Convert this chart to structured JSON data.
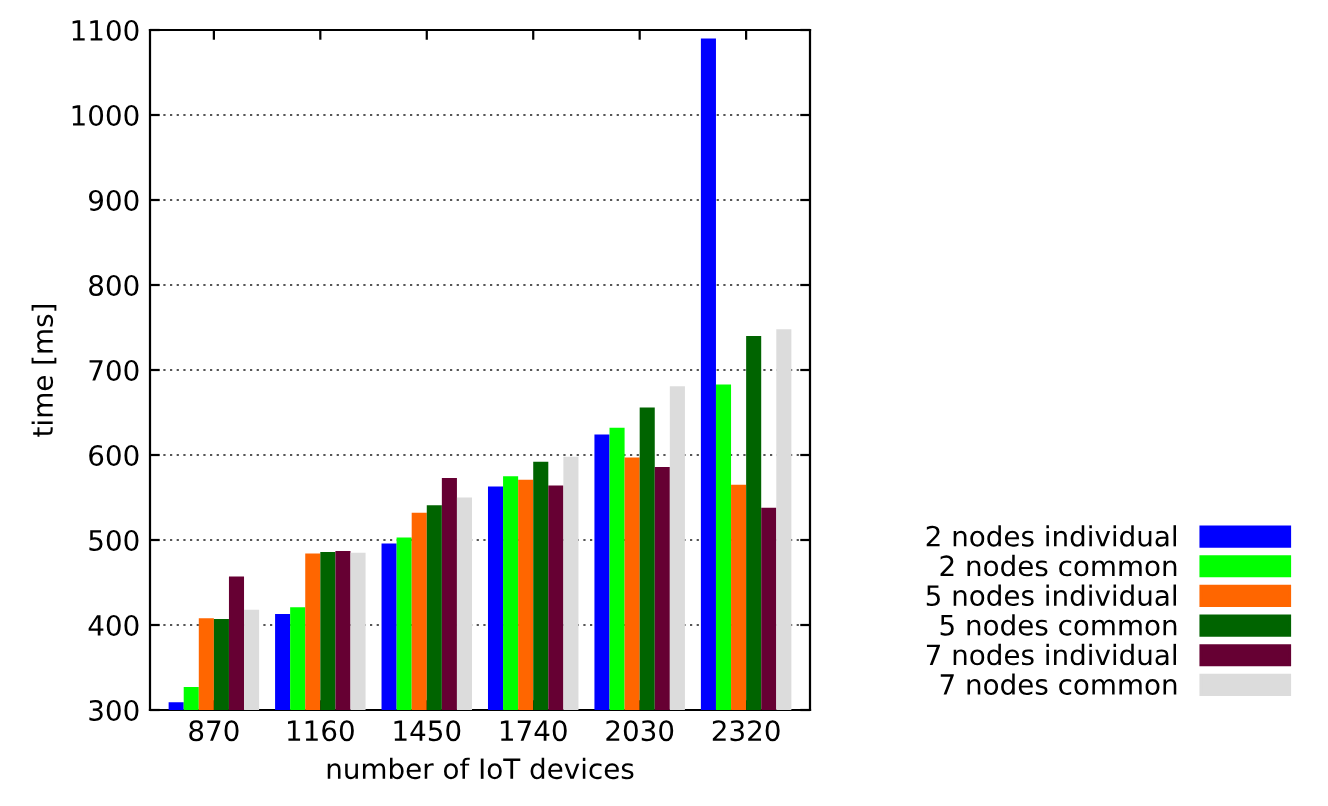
{
  "chart_data": {
    "type": "bar",
    "xlabel": "number of IoT devices",
    "ylabel": "time [ms]",
    "categories": [
      "870",
      "1160",
      "1450",
      "1740",
      "2030",
      "2320"
    ],
    "series": [
      {
        "name": "2 nodes individual",
        "color": "#0000ff",
        "values": [
          309,
          413,
          496,
          563,
          624,
          1090
        ]
      },
      {
        "name": "2 nodes common",
        "color": "#00ff00",
        "values": [
          327,
          421,
          503,
          575,
          632,
          683
        ]
      },
      {
        "name": "5 nodes individual",
        "color": "#ff6600",
        "values": [
          408,
          484,
          532,
          571,
          597,
          565
        ]
      },
      {
        "name": "5 nodes common",
        "color": "#006400",
        "values": [
          407,
          486,
          541,
          592,
          656,
          740
        ]
      },
      {
        "name": "7 nodes individual",
        "color": "#660033",
        "values": [
          457,
          487,
          573,
          564,
          586,
          538
        ]
      },
      {
        "name": "7 nodes common",
        "color": "#dcdcdc",
        "values": [
          418,
          485,
          550,
          598,
          681,
          748
        ]
      }
    ],
    "ylim": [
      300,
      1100
    ],
    "yticks": [
      300,
      400,
      500,
      600,
      700,
      800,
      900,
      1000,
      1100
    ],
    "grid": "y",
    "legend": "bottom right"
  }
}
